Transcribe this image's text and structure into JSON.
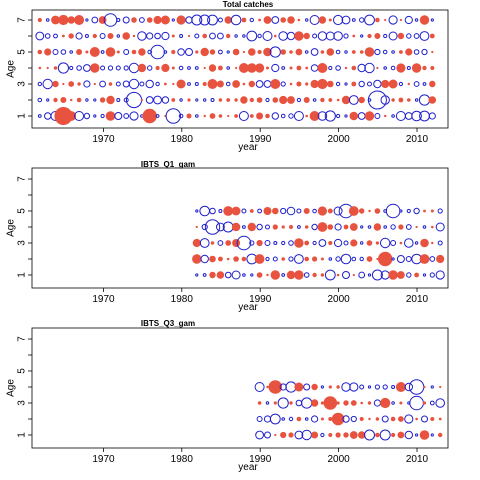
{
  "colors": {
    "positive": "#e8533f",
    "negative": "#1f1fcc"
  },
  "chart_data": [
    {
      "type": "scatter",
      "title": "Total catches",
      "xlabel": "year",
      "ylabel": "Age",
      "xlim": [
        1962,
        2015
      ],
      "ylim": [
        0.2,
        7.8
      ],
      "xticks": [
        "1970",
        "1980",
        "1990",
        "2000",
        "2010"
      ],
      "yticks": [
        "1",
        "3",
        "5",
        "7"
      ],
      "years": [
        1963,
        2013
      ],
      "ages": [
        1,
        2,
        3,
        4,
        5,
        6,
        7
      ],
      "highlights": [
        {
          "year": 1966,
          "age": 1,
          "sign": "positive",
          "size": 1.0
        },
        {
          "year": 1977,
          "age": 1,
          "sign": "positive",
          "size": 0.8
        },
        {
          "year": 1980,
          "age": 1,
          "sign": "negative",
          "size": 0.8
        },
        {
          "year": 1975,
          "age": 2,
          "sign": "negative",
          "size": 0.85
        },
        {
          "year": 2006,
          "age": 2,
          "sign": "negative",
          "size": 1.0
        },
        {
          "year": 1978,
          "age": 5,
          "sign": "negative",
          "size": 0.75
        },
        {
          "year": 1972,
          "age": 7,
          "sign": "negative",
          "size": 0.7
        }
      ]
    },
    {
      "type": "scatter",
      "title": "IBTS_Q1_gam",
      "xlabel": "year",
      "ylabel": "Age",
      "xlim": [
        1962,
        2015
      ],
      "ylim": [
        0.2,
        7.8
      ],
      "xticks": [
        "1970",
        "1980",
        "1990",
        "2000",
        "2010"
      ],
      "yticks": [
        "1",
        "3",
        "5",
        "7"
      ],
      "years": [
        1983,
        2014
      ],
      "ages": [
        1,
        2,
        3,
        4,
        5
      ],
      "highlights": [
        {
          "year": 1985,
          "age": 4,
          "sign": "negative",
          "size": 0.8
        },
        {
          "year": 1989,
          "age": 3,
          "sign": "negative",
          "size": 0.75
        },
        {
          "year": 2002,
          "age": 5,
          "sign": "negative",
          "size": 0.75
        },
        {
          "year": 2008,
          "age": 5,
          "sign": "negative",
          "size": 0.75
        },
        {
          "year": 2007,
          "age": 2,
          "sign": "positive",
          "size": 0.8
        }
      ]
    },
    {
      "type": "scatter",
      "title": "IBTS_Q3_gam",
      "xlabel": "year",
      "ylabel": "Age",
      "xlim": [
        1962,
        2015
      ],
      "ylim": [
        0.2,
        7.8
      ],
      "xticks": [
        "1970",
        "1980",
        "1990",
        "2000",
        "2010"
      ],
      "yticks": [
        "1",
        "3",
        "5",
        "7"
      ],
      "years": [
        1991,
        2014
      ],
      "ages": [
        1,
        2,
        3,
        4
      ],
      "highlights": [
        {
          "year": 1993,
          "age": 4,
          "sign": "positive",
          "size": 0.75
        },
        {
          "year": 2000,
          "age": 3,
          "sign": "positive",
          "size": 0.75
        },
        {
          "year": 2011,
          "age": 4,
          "sign": "negative",
          "size": 0.8
        },
        {
          "year": 2011,
          "age": 3,
          "sign": "negative",
          "size": 0.75
        },
        {
          "year": 2001,
          "age": 2,
          "sign": "positive",
          "size": 0.7
        }
      ]
    }
  ]
}
